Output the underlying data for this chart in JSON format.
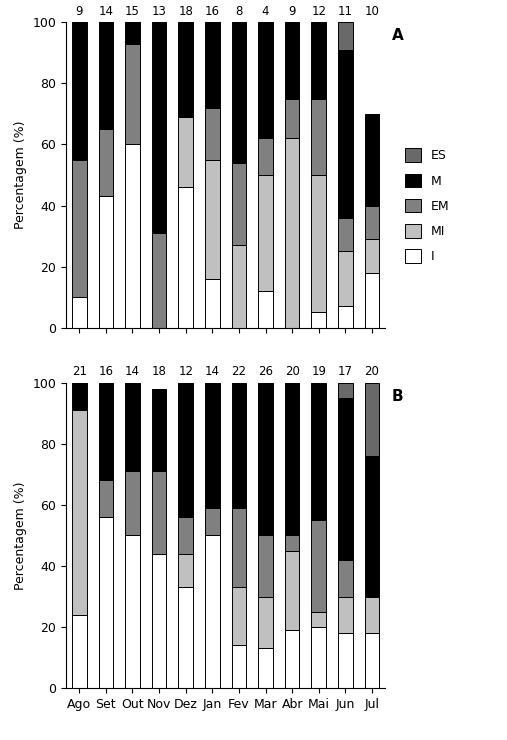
{
  "months": [
    "Ago",
    "Set",
    "Out",
    "Nov",
    "Dez",
    "Jan",
    "Fev",
    "Mar",
    "Abr",
    "Mai",
    "Jun",
    "Jul"
  ],
  "n_top": [
    9,
    14,
    15,
    13,
    18,
    16,
    8,
    4,
    9,
    12,
    11,
    10
  ],
  "n_bot": [
    21,
    16,
    14,
    18,
    12,
    14,
    22,
    26,
    20,
    19,
    17,
    20
  ],
  "top_data": {
    "I": [
      10,
      43,
      60,
      0,
      46,
      16,
      0,
      12,
      0,
      5,
      7,
      18
    ],
    "MI": [
      0,
      0,
      0,
      0,
      23,
      39,
      27,
      38,
      62,
      45,
      18,
      11
    ],
    "EM": [
      45,
      22,
      33,
      31,
      0,
      17,
      27,
      12,
      13,
      25,
      11,
      11
    ],
    "M": [
      45,
      35,
      7,
      69,
      31,
      28,
      46,
      38,
      25,
      25,
      55,
      30
    ],
    "ES": [
      0,
      0,
      0,
      0,
      0,
      0,
      0,
      0,
      0,
      0,
      9,
      0
    ]
  },
  "bot_data": {
    "I": [
      24,
      56,
      50,
      44,
      33,
      50,
      14,
      13,
      19,
      20,
      18,
      18
    ],
    "MI": [
      67,
      0,
      0,
      0,
      11,
      0,
      19,
      17,
      26,
      5,
      12,
      12
    ],
    "EM": [
      0,
      12,
      21,
      27,
      12,
      9,
      26,
      20,
      5,
      30,
      12,
      0
    ],
    "M": [
      9,
      32,
      29,
      27,
      44,
      41,
      41,
      50,
      50,
      45,
      53,
      46
    ],
    "ES": [
      0,
      0,
      0,
      0,
      0,
      0,
      0,
      0,
      0,
      0,
      5,
      24
    ]
  },
  "colors": {
    "ES": "#696969",
    "M": "#000000",
    "EM": "#808080",
    "MI": "#c0c0c0",
    "I": "#ffffff"
  },
  "ylabel": "Percentagem (%)",
  "label_A": "A",
  "label_B": "B",
  "legend_labels": [
    "ES",
    "M",
    "EM",
    "MI",
    "I"
  ],
  "bar_width": 0.55,
  "edgecolor": "#000000"
}
